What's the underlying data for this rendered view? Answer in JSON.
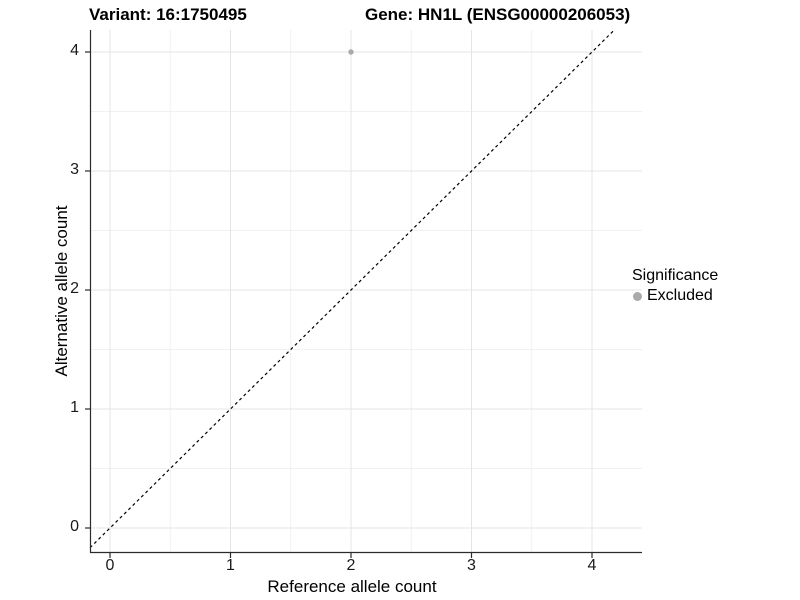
{
  "figure": {
    "title_variant": "Variant: 16:1750495",
    "title_gene": "Gene: HN1L (ENSG00000206053)"
  },
  "chart_data": {
    "type": "scatter",
    "title": "Variant: 16:1750495    Gene: HN1L (ENSG00000206053)",
    "xlabel": "Reference allele count",
    "ylabel": "Alternative allele count",
    "xlim": [
      -0.1659,
      4.4149
    ],
    "ylim": [
      -0.2101,
      4.1849
    ],
    "x_major_ticks": [
      0,
      1,
      2,
      3,
      4
    ],
    "y_major_ticks": [
      0,
      1,
      2,
      3,
      4
    ],
    "x_minor_ticks": [
      0.5,
      1.5,
      2.5,
      3.5
    ],
    "y_minor_ticks": [
      0.5,
      1.5,
      2.5,
      3.5
    ],
    "grid": true,
    "series": [
      {
        "name": "Excluded",
        "color": "#aaaaaa",
        "points": [
          {
            "x": 2,
            "y": 4
          }
        ]
      }
    ],
    "reference_line": {
      "type": "abline",
      "slope": 1,
      "intercept": 0,
      "style": "dashed",
      "color": "#000000"
    },
    "legend": {
      "title": "Significance",
      "position": "right",
      "entries": [
        {
          "label": "Excluded",
          "color": "#aaaaaa"
        }
      ]
    }
  },
  "colors": {
    "background": "#ffffff",
    "grid_major": "#e4e4e4",
    "grid_minor": "#f1f1f1",
    "axis_line": "#2b2b2b",
    "tick_mark": "#2b2b2b",
    "point": "#aaaaaa",
    "text": "#000000"
  }
}
